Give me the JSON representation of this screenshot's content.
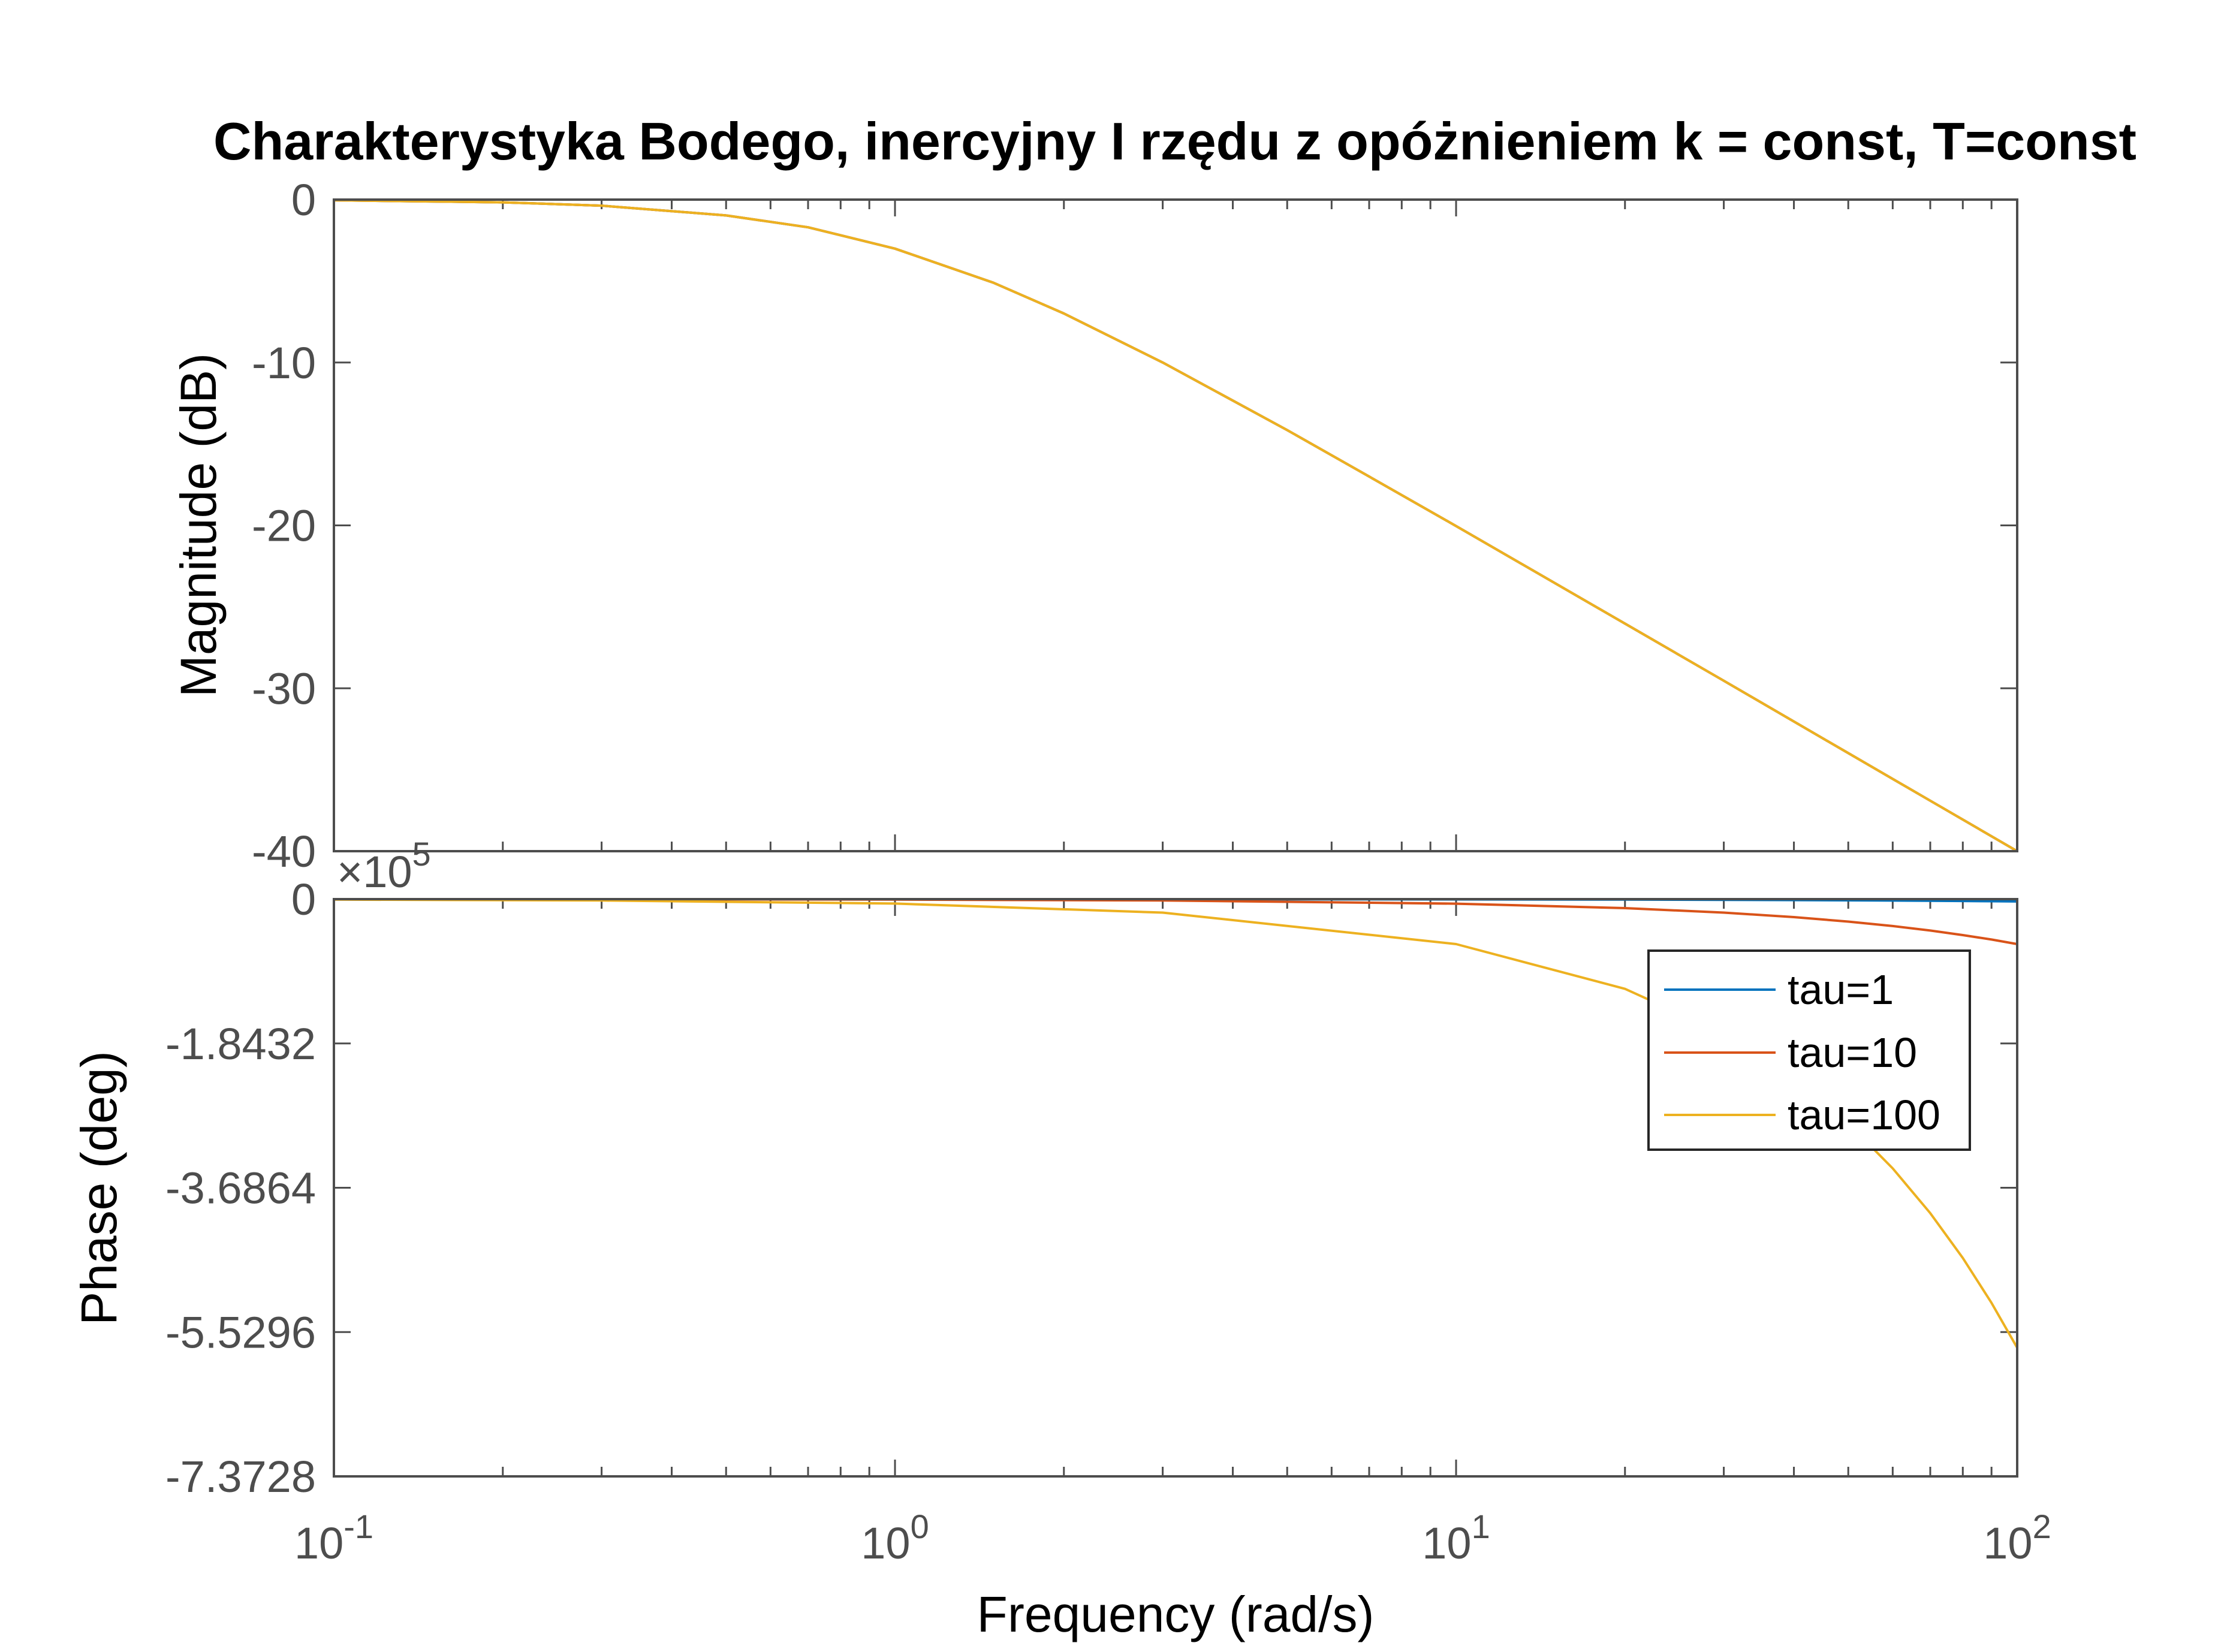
{
  "chart_data": [
    {
      "panel": "magnitude",
      "type": "line",
      "title": "Charakterystyka Bodego, inercyjny I rzędu z opóżnieniem k = const, T=const",
      "xlabel": "",
      "ylabel": "Magnitude (dB)",
      "xscale": "log",
      "xlim": [
        0.1,
        100
      ],
      "ylim": [
        -40,
        0
      ],
      "yticks": [
        0,
        -10,
        -20,
        -30,
        -40
      ],
      "ytick_labels": [
        "0",
        "-10",
        "-20",
        "-30",
        "-40"
      ],
      "grid": false,
      "x": [
        0.1,
        0.2,
        0.3,
        0.5,
        0.7,
        1,
        1.5,
        2,
        3,
        5,
        7,
        10,
        20,
        30,
        50,
        70,
        100
      ],
      "series": [
        {
          "name": "tau=1",
          "color": "#0072BD",
          "values": [
            -0.04,
            -0.17,
            -0.37,
            -0.97,
            -1.7,
            -3.01,
            -5.11,
            -6.99,
            -10.0,
            -14.15,
            -17.0,
            -20.04,
            -26.03,
            -29.54,
            -33.98,
            -36.9,
            -40.0
          ]
        },
        {
          "name": "tau=10",
          "color": "#D95319",
          "values": [
            -0.04,
            -0.17,
            -0.37,
            -0.97,
            -1.7,
            -3.01,
            -5.11,
            -6.99,
            -10.0,
            -14.15,
            -17.0,
            -20.04,
            -26.03,
            -29.54,
            -33.98,
            -36.9,
            -40.0
          ]
        },
        {
          "name": "tau=100",
          "color": "#EDB120",
          "values": [
            -0.04,
            -0.17,
            -0.37,
            -0.97,
            -1.7,
            -3.01,
            -5.11,
            -6.99,
            -10.0,
            -14.15,
            -17.0,
            -20.04,
            -26.03,
            -29.54,
            -33.98,
            -36.9,
            -40.0
          ]
        }
      ]
    },
    {
      "panel": "phase",
      "type": "line",
      "title": "",
      "xlabel": "Frequency  (rad/s)",
      "ylabel": "Phase (deg)",
      "xscale": "log",
      "xlim": [
        0.1,
        100
      ],
      "ylim": [
        -7.3728,
        0
      ],
      "yticks": [
        0,
        -1.8432,
        -3.6864,
        -5.5296,
        -7.3728
      ],
      "ytick_labels": [
        "0",
        "-1.8432",
        "-3.6864",
        "-5.5296",
        "-7.3728"
      ],
      "y_multiplier_label": "×10",
      "y_multiplier_exponent": "5",
      "grid": false,
      "legend": {
        "placement": "right, upper part of panel",
        "entries": [
          "tau=1",
          "tau=10",
          "tau=100"
        ]
      },
      "x": [
        0.1,
        0.3,
        1,
        3,
        10,
        20,
        30,
        40,
        50,
        60,
        70,
        80,
        90,
        100
      ],
      "series": [
        {
          "name": "tau=1",
          "color": "#0072BD",
          "values": [
            -0.0001,
            -0.0002,
            -0.0005,
            -0.0013,
            -0.0035,
            -0.0064,
            -0.0093,
            -0.0121,
            -0.015,
            -0.018,
            -0.0208,
            -0.0237,
            -0.0266,
            -0.0295
          ]
        },
        {
          "name": "tau=10",
          "color": "#D95319",
          "values": [
            -0.0006,
            -0.0018,
            -0.0058,
            -0.0174,
            -0.058,
            -0.115,
            -0.172,
            -0.23,
            -0.287,
            -0.344,
            -0.401,
            -0.459,
            -0.516,
            -0.574
          ]
        },
        {
          "name": "tau=100",
          "color": "#EDB120",
          "values": [
            -0.0058,
            -0.0173,
            -0.057,
            -0.172,
            -0.574,
            -1.146,
            -1.719,
            -2.292,
            -2.865,
            -3.438,
            -4.011,
            -4.584,
            -5.157,
            -5.73
          ]
        }
      ]
    }
  ],
  "x_tick_labels": [
    {
      "base": "10",
      "exp": "-1"
    },
    {
      "base": "10",
      "exp": "0"
    },
    {
      "base": "10",
      "exp": "1"
    },
    {
      "base": "10",
      "exp": "2"
    }
  ]
}
